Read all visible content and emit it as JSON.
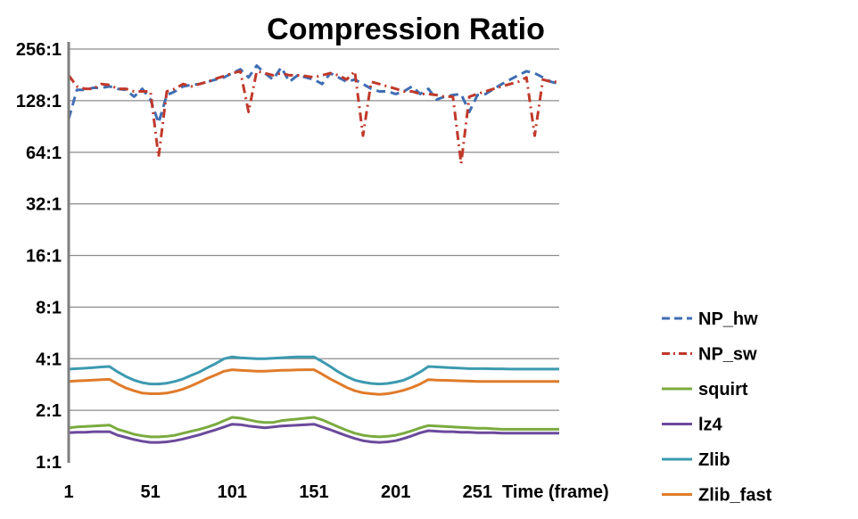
{
  "chart_data": {
    "type": "line",
    "title": "Compression Ratio",
    "xlabel": "Time (frame)",
    "ylabel": "",
    "y_scale": "log2",
    "ylim": [
      1,
      256
    ],
    "xlim": [
      1,
      301
    ],
    "x_ticks": [
      1,
      51,
      101,
      151,
      201,
      251
    ],
    "x_tick_labels": [
      "1",
      "51",
      "101",
      "151",
      "201",
      "251"
    ],
    "y_ticks": [
      1,
      2,
      4,
      8,
      16,
      32,
      64,
      128,
      256
    ],
    "y_tick_labels": [
      "1:1",
      "2:1",
      "4:1",
      "8:1",
      "16:1",
      "32:1",
      "64:1",
      "128:1",
      "256:1"
    ],
    "grid": "horizontal",
    "legend_position": "right",
    "x": [
      1,
      6,
      11,
      16,
      21,
      26,
      31,
      36,
      41,
      46,
      51,
      56,
      61,
      66,
      71,
      76,
      81,
      86,
      91,
      96,
      101,
      106,
      111,
      116,
      121,
      126,
      131,
      136,
      141,
      146,
      151,
      156,
      161,
      166,
      171,
      176,
      181,
      186,
      191,
      196,
      201,
      206,
      211,
      216,
      221,
      226,
      231,
      236,
      241,
      246,
      251,
      256,
      261,
      266,
      271,
      276,
      281,
      286,
      291,
      296,
      301
    ],
    "series": [
      {
        "name": "NP_hw",
        "color": "#3f6eb3",
        "dash": "dash",
        "values": [
          100,
          148,
          148,
          152,
          152,
          155,
          150,
          148,
          135,
          150,
          130,
          95,
          138,
          145,
          155,
          158,
          160,
          165,
          170,
          175,
          185,
          195,
          175,
          205,
          185,
          170,
          200,
          165,
          180,
          175,
          170,
          160,
          185,
          175,
          165,
          170,
          160,
          150,
          145,
          145,
          140,
          145,
          155,
          140,
          150,
          130,
          135,
          138,
          140,
          110,
          138,
          140,
          150,
          160,
          170,
          180,
          190,
          185,
          175,
          165,
          160
        ]
      },
      {
        "name": "NP_sw",
        "color": "#c0392b",
        "dash": "dashdot",
        "values": [
          180,
          155,
          150,
          150,
          160,
          158,
          150,
          150,
          145,
          145,
          145,
          60,
          145,
          150,
          160,
          155,
          160,
          165,
          172,
          178,
          185,
          190,
          110,
          190,
          185,
          180,
          185,
          180,
          180,
          178,
          175,
          180,
          185,
          180,
          170,
          190,
          80,
          165,
          160,
          155,
          150,
          145,
          145,
          140,
          140,
          138,
          135,
          135,
          55,
          135,
          140,
          145,
          150,
          155,
          160,
          165,
          175,
          80,
          170,
          165,
          165
        ]
      },
      {
        "name": "squirt",
        "color": "#7aab3f",
        "dash": "solid",
        "values": [
          1.58,
          1.6,
          1.61,
          1.62,
          1.63,
          1.64,
          1.55,
          1.5,
          1.45,
          1.42,
          1.4,
          1.4,
          1.41,
          1.43,
          1.47,
          1.51,
          1.55,
          1.6,
          1.66,
          1.74,
          1.82,
          1.8,
          1.76,
          1.72,
          1.7,
          1.7,
          1.74,
          1.76,
          1.78,
          1.8,
          1.82,
          1.76,
          1.68,
          1.6,
          1.53,
          1.47,
          1.43,
          1.41,
          1.4,
          1.41,
          1.43,
          1.47,
          1.52,
          1.58,
          1.63,
          1.62,
          1.61,
          1.6,
          1.59,
          1.58,
          1.57,
          1.57,
          1.56,
          1.55,
          1.55,
          1.55,
          1.55,
          1.55,
          1.55,
          1.55,
          1.55
        ]
      },
      {
        "name": "lz4",
        "color": "#6b4a9b",
        "dash": "solid",
        "values": [
          1.48,
          1.49,
          1.49,
          1.5,
          1.5,
          1.5,
          1.43,
          1.39,
          1.35,
          1.32,
          1.3,
          1.3,
          1.31,
          1.33,
          1.36,
          1.4,
          1.44,
          1.49,
          1.54,
          1.6,
          1.66,
          1.65,
          1.62,
          1.6,
          1.58,
          1.6,
          1.62,
          1.63,
          1.64,
          1.65,
          1.66,
          1.6,
          1.54,
          1.48,
          1.42,
          1.37,
          1.33,
          1.31,
          1.3,
          1.31,
          1.33,
          1.37,
          1.42,
          1.48,
          1.52,
          1.51,
          1.5,
          1.5,
          1.49,
          1.49,
          1.48,
          1.48,
          1.48,
          1.47,
          1.47,
          1.47,
          1.47,
          1.47,
          1.47,
          1.47,
          1.47
        ]
      },
      {
        "name": "Zlib",
        "color": "#3c9ab0",
        "dash": "solid",
        "values": [
          3.48,
          3.5,
          3.52,
          3.55,
          3.58,
          3.6,
          3.35,
          3.15,
          3.0,
          2.9,
          2.85,
          2.85,
          2.88,
          2.95,
          3.05,
          3.2,
          3.35,
          3.55,
          3.75,
          4.0,
          4.1,
          4.05,
          4.02,
          4.0,
          4.0,
          4.02,
          4.05,
          4.08,
          4.1,
          4.1,
          4.1,
          3.85,
          3.6,
          3.35,
          3.15,
          3.0,
          2.92,
          2.87,
          2.85,
          2.87,
          2.92,
          3.0,
          3.15,
          3.35,
          3.6,
          3.58,
          3.56,
          3.54,
          3.52,
          3.5,
          3.5,
          3.5,
          3.49,
          3.49,
          3.48,
          3.48,
          3.48,
          3.48,
          3.48,
          3.48,
          3.48
        ]
      },
      {
        "name": "Zlib_fast",
        "color": "#e07b2a",
        "dash": "solid",
        "values": [
          2.95,
          2.97,
          2.98,
          3.0,
          3.02,
          3.03,
          2.85,
          2.7,
          2.6,
          2.52,
          2.5,
          2.5,
          2.52,
          2.58,
          2.66,
          2.78,
          2.92,
          3.08,
          3.22,
          3.38,
          3.45,
          3.42,
          3.4,
          3.38,
          3.38,
          3.4,
          3.42,
          3.43,
          3.44,
          3.45,
          3.45,
          3.25,
          3.05,
          2.88,
          2.72,
          2.6,
          2.53,
          2.5,
          2.48,
          2.5,
          2.55,
          2.62,
          2.72,
          2.85,
          3.02,
          3.0,
          2.99,
          2.98,
          2.97,
          2.96,
          2.95,
          2.95,
          2.95,
          2.95,
          2.95,
          2.95,
          2.95,
          2.95,
          2.95,
          2.95,
          2.95
        ]
      }
    ]
  }
}
